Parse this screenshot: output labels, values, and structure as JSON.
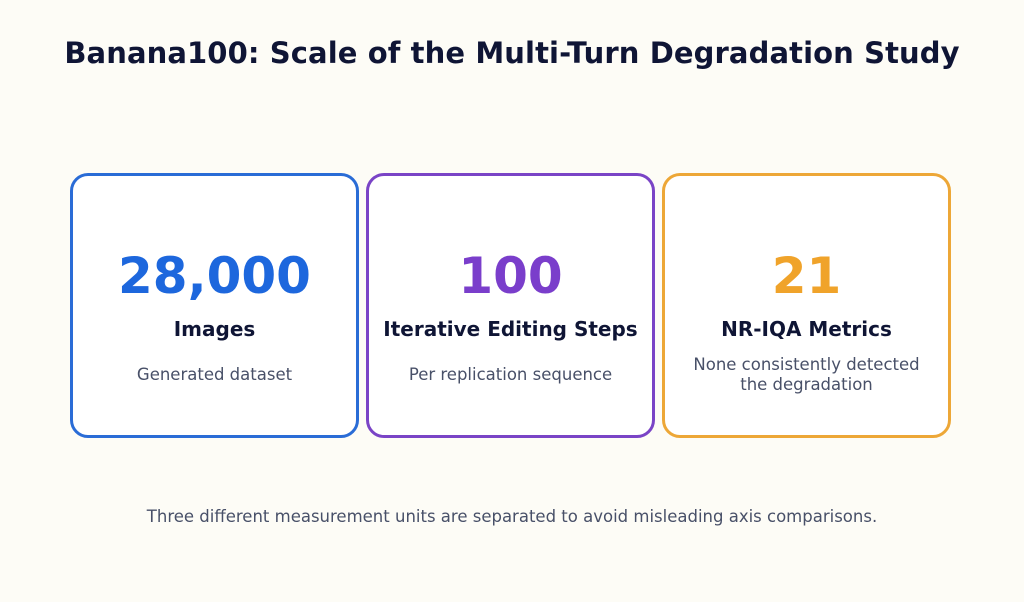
{
  "title": "Banana100: Scale of the Multi-Turn Degradation Study",
  "cards": [
    {
      "value": "28,000",
      "label": "Images",
      "description": "Generated dataset",
      "color": "#1d67dd"
    },
    {
      "value": "100",
      "label": "Iterative Editing Steps",
      "description": "Per replication sequence",
      "color": "#7a3ecb"
    },
    {
      "value": "21",
      "label": "NR-IQA Metrics",
      "description_line1": "None consistently detected",
      "description_line2": "the degradation",
      "color": "#f0a32a"
    }
  ],
  "arrows": [
    "‹",
    "‹"
  ],
  "footnote": "Three different measurement units are separated to avoid misleading axis comparisons."
}
